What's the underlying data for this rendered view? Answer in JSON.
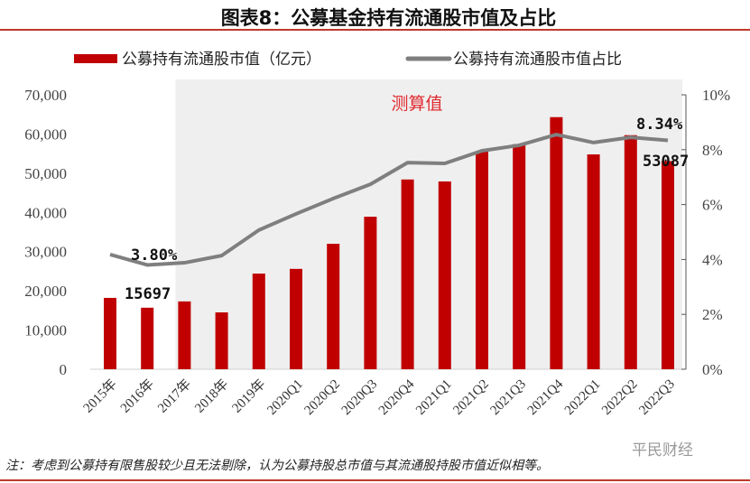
{
  "title": "图表8：公募基金持有流通股市值及占比",
  "note": "注：考虑到公募持有限售股较少且无法剔除，认为公募持股总市值与其流通股持股市值近似相等。",
  "watermark": "平民财经",
  "chart_data": {
    "type": "bar+line",
    "categories": [
      "2015年",
      "2016年",
      "2017年",
      "2018年",
      "2019年",
      "2020Q1",
      "2020Q2",
      "2020Q3",
      "2020Q4",
      "2021Q1",
      "2021Q2",
      "2021Q3",
      "2021Q4",
      "2022Q1",
      "2022Q2",
      "2022Q3"
    ],
    "series": [
      {
        "name": "公募持有流通股市值（亿元）",
        "type": "bar",
        "axis": "left",
        "color": "#c00000",
        "values": [
          18200,
          15697,
          17300,
          14500,
          24400,
          25600,
          32000,
          38900,
          48400,
          47900,
          55500,
          57400,
          64300,
          54800,
          59700,
          53087
        ]
      },
      {
        "name": "公募持有流通股市值占比",
        "type": "line",
        "axis": "right",
        "color": "#7f7f7f",
        "values": [
          4.18,
          3.8,
          3.88,
          4.14,
          5.07,
          5.66,
          6.22,
          6.74,
          7.53,
          7.5,
          7.96,
          8.16,
          8.55,
          8.26,
          8.45,
          8.34
        ]
      }
    ],
    "ylim_left": [
      0,
      70000
    ],
    "yticks_left": [
      "0",
      "10,000",
      "20,000",
      "30,000",
      "40,000",
      "50,000",
      "60,000",
      "70,000"
    ],
    "ylim_right": [
      0,
      10
    ],
    "yticks_right": [
      "0%",
      "2%",
      "4%",
      "6%",
      "8%",
      "10%"
    ],
    "shaded_region": {
      "from": "2017年",
      "to": "2022Q3",
      "label": "测算值",
      "color": "#efefef",
      "label_color": "#e0282e"
    },
    "annotations": [
      {
        "category": "2016年",
        "text": "3.80%"
      },
      {
        "category": "2016年",
        "text": "15697"
      },
      {
        "category": "2022Q3",
        "text": "8.34%"
      },
      {
        "category": "2022Q3",
        "text": "53087"
      }
    ],
    "legend": "top"
  }
}
